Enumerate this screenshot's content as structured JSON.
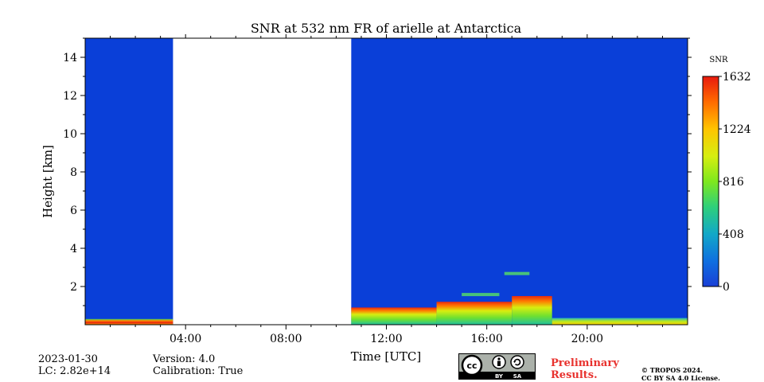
{
  "chart_data": {
    "type": "heatmap",
    "title": "SNR at 532 nm FR of arielle at Antarctica",
    "xlabel": "Time [UTC]",
    "ylabel": "Height [km]",
    "xlim": [
      0,
      24
    ],
    "ylim": [
      0,
      15
    ],
    "x_ticks": [
      {
        "value": 4,
        "label": "04:00"
      },
      {
        "value": 8,
        "label": "08:00"
      },
      {
        "value": 12,
        "label": "12:00"
      },
      {
        "value": 16,
        "label": "16:00"
      },
      {
        "value": 20,
        "label": "20:00"
      }
    ],
    "y_ticks": [
      {
        "value": 2,
        "label": "2"
      },
      {
        "value": 4,
        "label": "4"
      },
      {
        "value": 6,
        "label": "6"
      },
      {
        "value": 8,
        "label": "8"
      },
      {
        "value": 10,
        "label": "10"
      },
      {
        "value": 12,
        "label": "12"
      },
      {
        "value": 14,
        "label": "14"
      }
    ],
    "colorbar": {
      "label": "SNR",
      "range": [
        0,
        1632
      ],
      "ticks": [
        0,
        408,
        816,
        1224,
        1632
      ],
      "colormap": "jet",
      "background": "#0a3fd8"
    },
    "no_data_gap_hours": [
      3.5,
      10.6
    ],
    "layers": [
      {
        "start_h": 0.0,
        "end_h": 3.5,
        "top_km": 0.3,
        "snr": 1550
      },
      {
        "start_h": 10.6,
        "end_h": 14.0,
        "top_km": 0.9,
        "snr": 1250
      },
      {
        "start_h": 14.0,
        "end_h": 17.0,
        "top_km": 1.2,
        "snr": 1300
      },
      {
        "start_h": 17.0,
        "end_h": 18.6,
        "top_km": 1.5,
        "snr": 900
      },
      {
        "start_h": 18.6,
        "end_h": 24.0,
        "top_km": 0.35,
        "snr": 850
      },
      {
        "start_h": 16.7,
        "end_h": 17.7,
        "top_km": 2.7,
        "snr": 650
      },
      {
        "start_h": 15.0,
        "end_h": 16.5,
        "top_km": 1.6,
        "snr": 500
      }
    ]
  },
  "info": {
    "date": "2023-01-30",
    "lc": "LC: 2.82e+14",
    "version": "Version: 4.0",
    "calibration": "Calibration: True",
    "preliminary_line1": "Preliminary",
    "preliminary_line2": "Results.",
    "copyright_line1": "© TROPOS 2024.",
    "copyright_line2": "CC BY SA 4.0 License.",
    "license_badge": {
      "cc": "cc",
      "by": "BY",
      "sa": "SA"
    }
  }
}
